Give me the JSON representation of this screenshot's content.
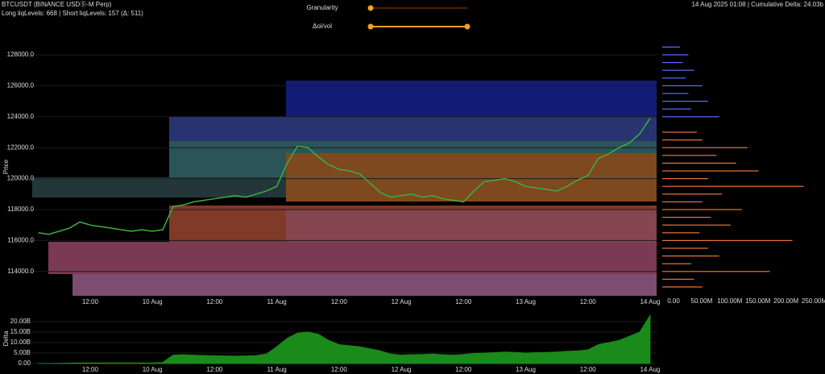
{
  "header": {
    "symbol": "BTCUSDT (BINANCE USDⓈ-M Perp)",
    "levels": "Long liqLevels: 668 | Short liqLevels: 157 (Δ: 511)",
    "status": "14 Aug 2025 01:08 | Cumulative Delta: 24.03b"
  },
  "controls": {
    "granularity": "Granularity",
    "oi_vol": "Δoi/vol"
  },
  "chart_data": [
    {
      "type": "line",
      "y_label": "Price",
      "color": "#3fae3f",
      "categories": [
        null,
        null,
        null,
        null,
        null,
        "12:00",
        null,
        null,
        null,
        null,
        null,
        "10 Aug",
        null,
        null,
        null,
        null,
        null,
        "12:00",
        null,
        null,
        null,
        null,
        null,
        "11 Aug",
        null,
        null,
        null,
        null,
        null,
        "12:00",
        null,
        null,
        null,
        null,
        null,
        "12 Aug",
        null,
        null,
        null,
        null,
        null,
        "12:00",
        null,
        null,
        null,
        null,
        null,
        "13 Aug",
        null,
        null,
        null,
        null,
        null,
        "12:00",
        null,
        null,
        null,
        null,
        null,
        "14 Aug"
      ],
      "values": [
        116500,
        116400,
        116600,
        116800,
        117200,
        117000,
        116900,
        116800,
        116700,
        116600,
        116700,
        116600,
        116700,
        118200,
        118300,
        118500,
        118600,
        118700,
        118800,
        118900,
        118800,
        119000,
        119200,
        119500,
        121000,
        122100,
        122000,
        121400,
        120900,
        120600,
        120500,
        120300,
        119700,
        119100,
        118800,
        118900,
        119000,
        118800,
        118900,
        118700,
        118600,
        118500,
        119200,
        119800,
        119900,
        120000,
        119800,
        119500,
        119400,
        119300,
        119200,
        119500,
        119900,
        120200,
        121300,
        121600,
        122000,
        122300,
        122900,
        123900
      ],
      "ylim": [
        112500,
        129000
      ],
      "yticks": [
        {
          "value": 114000,
          "label": "114000.0"
        },
        {
          "value": 116000,
          "label": "116000.0"
        },
        {
          "value": 118000,
          "label": "118000.0"
        },
        {
          "value": 120000,
          "label": "120000.0"
        },
        {
          "value": 122000,
          "label": "122000.0"
        },
        {
          "value": 124000,
          "label": "124000.0"
        },
        {
          "value": 126000,
          "label": "126000.0"
        },
        {
          "value": 128000,
          "label": "128000.0"
        }
      ]
    },
    {
      "type": "hbar",
      "xlim": [
        0,
        278
      ],
      "ylim": [
        112500,
        129000
      ],
      "xticks": [
        {
          "value": 0,
          "label": "0.00"
        },
        {
          "value": 50,
          "label": "50.00M"
        },
        {
          "value": 100,
          "label": "100.00M"
        },
        {
          "value": 150,
          "label": "150.00M"
        },
        {
          "value": 200,
          "label": "200.00M"
        },
        {
          "value": 250,
          "label": "250.00M"
        }
      ],
      "series": [
        {
          "color": "#e8743a",
          "y": [
            113000,
            113500,
            114000,
            114500,
            115000,
            115500,
            116000,
            116500,
            117000,
            117500,
            118000,
            118500,
            119000,
            119500,
            120000,
            120500,
            121000,
            121500,
            122000,
            122500,
            123000
          ],
          "values": [
            60,
            45,
            180,
            40,
            90,
            70,
            220,
            55,
            110,
            75,
            130,
            60,
            95,
            240,
            70,
            160,
            120,
            85,
            140,
            60,
            50
          ]
        },
        {
          "color": "#5a6cff",
          "y": [
            124000,
            124500,
            125000,
            125500,
            126000,
            126500,
            127000,
            127500,
            128000,
            128500
          ],
          "values": [
            90,
            40,
            70,
            35,
            60,
            30,
            45,
            25,
            35,
            20
          ]
        }
      ]
    },
    {
      "type": "area",
      "y_label": "Delta",
      "color": "#1a8a1a",
      "categories": [
        null,
        null,
        null,
        null,
        null,
        "12:00",
        null,
        null,
        null,
        null,
        null,
        "10 Aug",
        null,
        null,
        null,
        null,
        null,
        "12:00",
        null,
        null,
        null,
        null,
        null,
        "11 Aug",
        null,
        null,
        null,
        null,
        null,
        "12:00",
        null,
        null,
        null,
        null,
        null,
        "12 Aug",
        null,
        null,
        null,
        null,
        null,
        "12:00",
        null,
        null,
        null,
        null,
        null,
        "13 Aug",
        null,
        null,
        null,
        null,
        null,
        "12:00",
        null,
        null,
        null,
        null,
        null,
        "14 Aug"
      ],
      "values": [
        0,
        0,
        0.1,
        0.2,
        0.3,
        0.3,
        0.3,
        0.3,
        0.3,
        0.3,
        0.3,
        0.3,
        0.5,
        4,
        4.2,
        4,
        3.8,
        3.7,
        3.6,
        3.5,
        3.6,
        3.8,
        4.5,
        8,
        12,
        14.5,
        15,
        14,
        11,
        9,
        8.5,
        8,
        7,
        6,
        4.5,
        4,
        4.2,
        4.3,
        4.5,
        4.2,
        4,
        4.3,
        4.8,
        5,
        5.2,
        5.5,
        5.3,
        5,
        5.2,
        5.3,
        5.5,
        5.8,
        6,
        6.5,
        9,
        10,
        11,
        13,
        15,
        23
      ],
      "ylim": [
        0,
        24
      ],
      "yticks": [
        {
          "value": 0,
          "label": "0.00"
        },
        {
          "value": 5,
          "label": "5.00B"
        },
        {
          "value": 10,
          "label": "10.00B"
        },
        {
          "value": 15,
          "label": "15.00B"
        },
        {
          "value": 20,
          "label": "20.00B"
        }
      ]
    }
  ]
}
